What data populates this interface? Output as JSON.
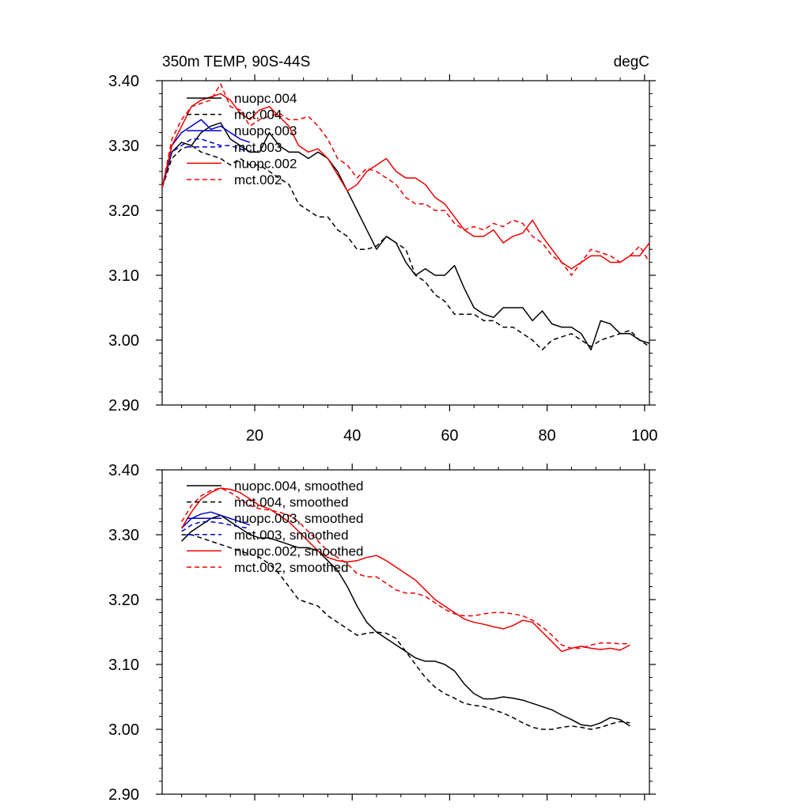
{
  "chart_data": [
    {
      "type": "line",
      "title": "350m TEMP, 90S-44S",
      "units": "degC",
      "xlim": [
        1,
        101
      ],
      "ylim": [
        2.9,
        3.4
      ],
      "xticks": [
        20,
        40,
        60,
        80,
        100
      ],
      "xtick_labels": [
        "20",
        "40",
        "60",
        "80",
        "100"
      ],
      "yticks": [
        2.9,
        3.0,
        3.1,
        3.2,
        3.3,
        3.4
      ],
      "ytick_labels": [
        "2.90",
        "3.00",
        "3.10",
        "3.20",
        "3.30",
        "3.40"
      ],
      "legend_position": "top-left",
      "series": [
        {
          "name": "nuopc.004",
          "color": "#000000",
          "dash": "solid",
          "x": [
            1,
            3,
            5,
            7,
            9,
            11,
            13,
            15,
            17,
            19,
            21,
            23,
            25,
            27,
            29,
            31,
            33,
            35,
            37,
            39,
            41,
            43,
            45,
            47,
            49,
            51,
            53,
            55,
            57,
            59,
            61,
            63,
            65,
            67,
            69,
            71,
            73,
            75,
            77,
            79,
            81,
            83,
            85,
            87,
            89,
            91,
            93,
            95,
            97,
            99,
            101
          ],
          "values": [
            3.235,
            3.29,
            3.305,
            3.3,
            3.32,
            3.33,
            3.335,
            3.31,
            3.3,
            3.29,
            3.29,
            3.32,
            3.3,
            3.29,
            3.29,
            3.28,
            3.29,
            3.28,
            3.26,
            3.23,
            3.2,
            3.17,
            3.14,
            3.16,
            3.15,
            3.12,
            3.1,
            3.11,
            3.1,
            3.1,
            3.115,
            3.08,
            3.05,
            3.04,
            3.035,
            3.05,
            3.05,
            3.05,
            3.03,
            3.045,
            3.025,
            3.02,
            3.02,
            3.01,
            2.985,
            3.03,
            3.025,
            3.01,
            3.01,
            3.0,
            2.995
          ]
        },
        {
          "name": "mct.004",
          "color": "#000000",
          "dash": "dashed",
          "x": [
            1,
            3,
            5,
            7,
            9,
            11,
            13,
            15,
            17,
            19,
            21,
            23,
            25,
            27,
            29,
            31,
            33,
            35,
            37,
            39,
            41,
            43,
            45,
            47,
            49,
            51,
            53,
            55,
            57,
            59,
            61,
            63,
            65,
            67,
            69,
            71,
            73,
            75,
            77,
            79,
            81,
            83,
            85,
            87,
            89,
            91,
            93,
            95,
            97,
            99,
            101
          ],
          "values": [
            3.235,
            3.28,
            3.295,
            3.3,
            3.29,
            3.285,
            3.28,
            3.27,
            3.28,
            3.27,
            3.27,
            3.26,
            3.25,
            3.24,
            3.21,
            3.2,
            3.19,
            3.19,
            3.17,
            3.16,
            3.14,
            3.14,
            3.145,
            3.16,
            3.15,
            3.14,
            3.1,
            3.09,
            3.07,
            3.06,
            3.04,
            3.04,
            3.04,
            3.03,
            3.03,
            3.02,
            3.02,
            3.01,
            3.0,
            2.985,
            3.0,
            3.005,
            3.01,
            3.0,
            2.99,
            3.0,
            3.005,
            3.01,
            3.015,
            3.0,
            2.99
          ]
        },
        {
          "name": "nuopc.003",
          "color": "#0000cc",
          "dash": "solid",
          "x": [
            1,
            3,
            5,
            7,
            9,
            11,
            13,
            15,
            17,
            19
          ],
          "values": [
            3.235,
            3.3,
            3.32,
            3.33,
            3.34,
            3.325,
            3.33,
            3.32,
            3.31,
            3.305
          ]
        },
        {
          "name": "mct.003",
          "color": "#0000cc",
          "dash": "dashed",
          "x": [
            1,
            3,
            5,
            7,
            9,
            11,
            13,
            15,
            17,
            19
          ],
          "values": [
            3.235,
            3.29,
            3.3,
            3.31,
            3.31,
            3.305,
            3.3,
            3.3,
            3.295,
            3.29
          ]
        },
        {
          "name": "nuopc.002",
          "color": "#ee0000",
          "dash": "solid",
          "x": [
            1,
            3,
            5,
            7,
            9,
            11,
            13,
            15,
            17,
            19,
            21,
            23,
            25,
            27,
            29,
            31,
            33,
            35,
            37,
            39,
            41,
            43,
            45,
            47,
            49,
            51,
            53,
            55,
            57,
            59,
            61,
            63,
            65,
            67,
            69,
            71,
            73,
            75,
            77,
            79,
            81,
            83,
            85,
            87,
            89,
            91,
            93,
            95,
            97,
            99,
            101
          ],
          "values": [
            3.235,
            3.3,
            3.33,
            3.36,
            3.37,
            3.375,
            3.38,
            3.37,
            3.35,
            3.34,
            3.355,
            3.36,
            3.345,
            3.33,
            3.3,
            3.29,
            3.295,
            3.28,
            3.255,
            3.23,
            3.24,
            3.26,
            3.27,
            3.28,
            3.26,
            3.25,
            3.25,
            3.24,
            3.22,
            3.21,
            3.19,
            3.17,
            3.16,
            3.16,
            3.17,
            3.15,
            3.16,
            3.165,
            3.185,
            3.16,
            3.14,
            3.12,
            3.11,
            3.12,
            3.13,
            3.13,
            3.12,
            3.12,
            3.13,
            3.13,
            3.15
          ]
        },
        {
          "name": "mct.002",
          "color": "#ee0000",
          "dash": "dashed",
          "x": [
            1,
            3,
            5,
            7,
            9,
            11,
            13,
            15,
            17,
            19,
            21,
            23,
            25,
            27,
            29,
            31,
            33,
            35,
            37,
            39,
            41,
            43,
            45,
            47,
            49,
            51,
            53,
            55,
            57,
            59,
            61,
            63,
            65,
            67,
            69,
            71,
            73,
            75,
            77,
            79,
            81,
            83,
            85,
            87,
            89,
            91,
            93,
            95,
            97,
            99,
            101
          ],
          "values": [
            3.235,
            3.31,
            3.34,
            3.36,
            3.365,
            3.37,
            3.395,
            3.36,
            3.355,
            3.33,
            3.34,
            3.345,
            3.35,
            3.34,
            3.34,
            3.345,
            3.33,
            3.31,
            3.28,
            3.27,
            3.25,
            3.265,
            3.26,
            3.25,
            3.24,
            3.22,
            3.21,
            3.21,
            3.2,
            3.2,
            3.18,
            3.17,
            3.175,
            3.17,
            3.18,
            3.175,
            3.185,
            3.18,
            3.16,
            3.15,
            3.13,
            3.12,
            3.1,
            3.12,
            3.14,
            3.135,
            3.13,
            3.12,
            3.13,
            3.145,
            3.12
          ]
        }
      ]
    },
    {
      "type": "line",
      "title": "",
      "xlim": [
        1,
        101
      ],
      "ylim": [
        2.9,
        3.4
      ],
      "xticks": [
        20,
        40,
        60,
        80,
        100
      ],
      "xtick_labels": [],
      "yticks": [
        2.9,
        3.0,
        3.1,
        3.2,
        3.3,
        3.4
      ],
      "ytick_labels": [
        "2.90",
        "3.00",
        "3.10",
        "3.20",
        "3.30",
        "3.40"
      ],
      "legend_position": "top-left",
      "series": [
        {
          "name": "nuopc.004, smoothed",
          "color": "#000000",
          "dash": "solid",
          "x": [
            5,
            7,
            9,
            11,
            13,
            15,
            17,
            19,
            21,
            23,
            25,
            27,
            29,
            31,
            33,
            35,
            37,
            39,
            41,
            43,
            45,
            47,
            49,
            51,
            53,
            55,
            57,
            59,
            61,
            63,
            65,
            67,
            69,
            71,
            73,
            75,
            77,
            79,
            81,
            83,
            85,
            87,
            89,
            91,
            93,
            95,
            97
          ],
          "values": [
            3.29,
            3.305,
            3.315,
            3.325,
            3.33,
            3.32,
            3.31,
            3.3,
            3.295,
            3.295,
            3.29,
            3.285,
            3.28,
            3.28,
            3.275,
            3.26,
            3.245,
            3.22,
            3.19,
            3.165,
            3.15,
            3.14,
            3.13,
            3.12,
            3.11,
            3.105,
            3.105,
            3.1,
            3.09,
            3.07,
            3.055,
            3.047,
            3.047,
            3.05,
            3.048,
            3.045,
            3.04,
            3.035,
            3.03,
            3.022,
            3.015,
            3.007,
            3.005,
            3.01,
            3.018,
            3.015,
            3.005
          ]
        },
        {
          "name": "mct.004, smoothed",
          "color": "#000000",
          "dash": "dashed",
          "x": [
            5,
            7,
            9,
            11,
            13,
            15,
            17,
            19,
            21,
            23,
            25,
            27,
            29,
            31,
            33,
            35,
            37,
            39,
            41,
            43,
            45,
            47,
            49,
            51,
            53,
            55,
            57,
            59,
            61,
            63,
            65,
            67,
            69,
            71,
            73,
            75,
            77,
            79,
            81,
            83,
            85,
            87,
            89,
            91,
            93,
            95,
            97
          ],
          "values": [
            3.3,
            3.3,
            3.295,
            3.29,
            3.285,
            3.28,
            3.275,
            3.27,
            3.265,
            3.255,
            3.24,
            3.22,
            3.2,
            3.195,
            3.19,
            3.175,
            3.165,
            3.155,
            3.145,
            3.148,
            3.15,
            3.148,
            3.14,
            3.12,
            3.1,
            3.08,
            3.065,
            3.055,
            3.048,
            3.04,
            3.037,
            3.035,
            3.03,
            3.025,
            3.018,
            3.01,
            3.003,
            3.0,
            3.0,
            3.003,
            3.005,
            3.003,
            3.0,
            3.003,
            3.008,
            3.012,
            3.01
          ]
        },
        {
          "name": "nuopc.003, smoothed",
          "color": "#0000cc",
          "dash": "solid",
          "x": [
            5,
            7,
            9,
            11,
            13,
            15,
            17,
            19
          ],
          "values": [
            3.31,
            3.325,
            3.332,
            3.335,
            3.33,
            3.325,
            3.32,
            3.315
          ]
        },
        {
          "name": "mct.003, smoothed",
          "color": "#0000cc",
          "dash": "dashed",
          "x": [
            5,
            7,
            9,
            11,
            13,
            15,
            17,
            19
          ],
          "values": [
            3.305,
            3.315,
            3.32,
            3.32,
            3.318,
            3.315,
            3.312,
            3.31
          ]
        },
        {
          "name": "nuopc.002, smoothed",
          "color": "#ee0000",
          "dash": "solid",
          "x": [
            5,
            7,
            9,
            11,
            13,
            15,
            17,
            19,
            21,
            23,
            25,
            27,
            29,
            31,
            33,
            35,
            37,
            39,
            41,
            43,
            45,
            47,
            49,
            51,
            53,
            55,
            57,
            59,
            61,
            63,
            65,
            67,
            69,
            71,
            73,
            75,
            77,
            79,
            81,
            83,
            85,
            87,
            89,
            91,
            93,
            95,
            97
          ],
          "values": [
            3.31,
            3.335,
            3.355,
            3.365,
            3.372,
            3.37,
            3.365,
            3.355,
            3.345,
            3.34,
            3.33,
            3.32,
            3.305,
            3.29,
            3.275,
            3.265,
            3.26,
            3.258,
            3.26,
            3.265,
            3.268,
            3.26,
            3.25,
            3.24,
            3.23,
            3.215,
            3.2,
            3.19,
            3.18,
            3.17,
            3.165,
            3.162,
            3.158,
            3.155,
            3.16,
            3.168,
            3.165,
            3.15,
            3.135,
            3.12,
            3.125,
            3.128,
            3.125,
            3.123,
            3.125,
            3.122,
            3.13
          ]
        },
        {
          "name": "mct.002, smoothed",
          "color": "#ee0000",
          "dash": "dashed",
          "x": [
            5,
            7,
            9,
            11,
            13,
            15,
            17,
            19,
            21,
            23,
            25,
            27,
            29,
            31,
            33,
            35,
            37,
            39,
            41,
            43,
            45,
            47,
            49,
            51,
            53,
            55,
            57,
            59,
            61,
            63,
            65,
            67,
            69,
            71,
            73,
            75,
            77,
            79,
            81,
            83,
            85,
            87,
            89,
            91,
            93,
            95,
            97
          ],
          "values": [
            3.32,
            3.345,
            3.36,
            3.368,
            3.372,
            3.365,
            3.355,
            3.345,
            3.34,
            3.338,
            3.335,
            3.33,
            3.32,
            3.305,
            3.29,
            3.275,
            3.265,
            3.255,
            3.24,
            3.235,
            3.235,
            3.225,
            3.215,
            3.21,
            3.21,
            3.205,
            3.195,
            3.185,
            3.178,
            3.175,
            3.175,
            3.178,
            3.18,
            3.18,
            3.178,
            3.175,
            3.168,
            3.158,
            3.145,
            3.13,
            3.125,
            3.125,
            3.13,
            3.133,
            3.133,
            3.132,
            3.132
          ]
        }
      ]
    }
  ]
}
